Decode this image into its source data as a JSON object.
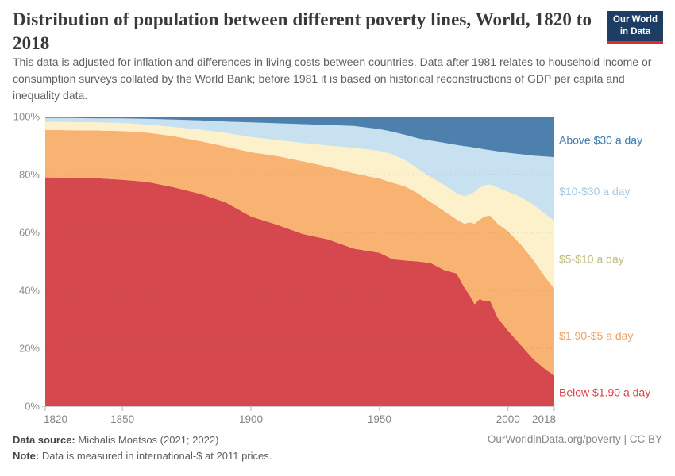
{
  "header": {
    "title": "Distribution of population between different poverty lines, World, 1820 to 2018",
    "logo": {
      "line1": "Our World",
      "line2": "in Data",
      "bg_color": "#1d3d63",
      "accent_color": "#dc2e32"
    }
  },
  "subtitle": {
    "text": "This data is adjusted for inflation and differences in living costs between countries. Data after 1981 relates to household income or consumption surveys collated by the World Bank; before 1981 it is based on historical reconstructions of GDP per capita and inequality data."
  },
  "chart_data": {
    "type": "area",
    "stacked": true,
    "grid": "dashed",
    "legend_position": "right",
    "ylim": [
      0,
      100
    ],
    "y_ticks": [
      {
        "v": 0,
        "label": "0%"
      },
      {
        "v": 20,
        "label": "20%"
      },
      {
        "v": 40,
        "label": "40%"
      },
      {
        "v": 60,
        "label": "60%"
      },
      {
        "v": 80,
        "label": "80%"
      },
      {
        "v": 100,
        "label": "100%"
      }
    ],
    "x_ticks": [
      1820,
      1850,
      1900,
      1950,
      2000,
      2018
    ],
    "x": [
      1820,
      1830,
      1840,
      1850,
      1860,
      1870,
      1880,
      1890,
      1900,
      1910,
      1920,
      1930,
      1940,
      1950,
      1955,
      1960,
      1965,
      1970,
      1975,
      1980,
      1983,
      1985,
      1987,
      1989,
      1991,
      1993,
      1996,
      2000,
      2005,
      2010,
      2015,
      2018
    ],
    "series": [
      {
        "name": "Below $1.90 a day",
        "color": "#d5484d",
        "label_color": "#dd3d45",
        "values": [
          79.0,
          78.9,
          78.7,
          78.2,
          77.4,
          75.6,
          73.4,
          70.5,
          65.5,
          62.7,
          59.5,
          57.6,
          54.4,
          53.0,
          50.8,
          50.3,
          50.0,
          49.4,
          47.1,
          45.8,
          41.0,
          38.4,
          35.2,
          37.0,
          36.2,
          36.4,
          30.5,
          26.1,
          21.1,
          16.1,
          12.4,
          10.6
        ]
      },
      {
        "name": "$1.90-$5 a day",
        "color": "#f8b271",
        "label_color": "#efa167",
        "values": [
          16.4,
          16.4,
          16.5,
          16.8,
          17.0,
          17.6,
          18.2,
          19.2,
          22.2,
          23.7,
          25.1,
          25.1,
          26.1,
          25.6,
          26.4,
          25.6,
          23.5,
          21.0,
          20.4,
          18.7,
          22.0,
          25.1,
          27.8,
          27.5,
          29.3,
          29.4,
          32.5,
          34.3,
          34.7,
          34.2,
          31.5,
          30.1
        ]
      },
      {
        "name": "$5-$10 a day",
        "color": "#fcf1cb",
        "label_color": "#c1bc82",
        "values": [
          2.8,
          2.8,
          2.8,
          2.8,
          2.8,
          3.2,
          3.9,
          4.7,
          5.3,
          5.6,
          6.3,
          7.3,
          8.8,
          9.6,
          9.8,
          9.1,
          8.5,
          8.6,
          9.0,
          9.0,
          9.5,
          9.6,
          11.0,
          11.0,
          10.8,
          10.8,
          12.5,
          13.6,
          16.4,
          19.2,
          22.1,
          23.3
        ]
      },
      {
        "name": "$10-$30 a day",
        "color": "#c8e1f0",
        "label_color": "#a5c9e1",
        "values": [
          1.3,
          1.4,
          1.4,
          1.6,
          2.0,
          2.6,
          3.2,
          3.9,
          5.0,
          5.7,
          6.5,
          7.1,
          7.5,
          7.5,
          7.8,
          8.7,
          10.5,
          12.7,
          14.5,
          16.7,
          17.3,
          16.5,
          15.3,
          13.5,
          12.4,
          11.8,
          12.5,
          13.5,
          14.8,
          17.0,
          20.2,
          22.0
        ]
      },
      {
        "name": "Above $30 a day",
        "color": "#4d80ad",
        "label_color": "#3d7bb0",
        "values": [
          0.5,
          0.5,
          0.6,
          0.6,
          0.8,
          1.0,
          1.3,
          1.7,
          2.0,
          2.3,
          2.6,
          2.9,
          3.2,
          4.3,
          5.2,
          6.3,
          7.5,
          8.3,
          9.0,
          9.8,
          10.2,
          10.4,
          10.7,
          11.0,
          11.3,
          11.6,
          12.0,
          12.5,
          13.0,
          13.5,
          13.8,
          14.0
        ]
      }
    ]
  },
  "footer": {
    "source_label": "Data source:",
    "source_value": " Michalis Moatsos (2021; 2022)",
    "note_label": "Note:",
    "note_value": " Data is measured in international-$ at 2011 prices.",
    "attribution": "OurWorldinData.org/poverty | CC BY"
  }
}
